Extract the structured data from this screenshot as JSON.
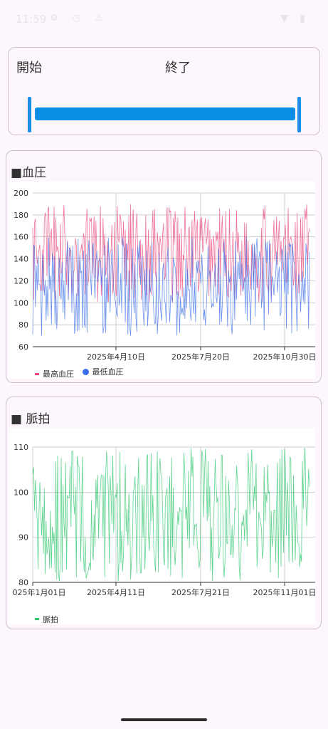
{
  "status_bar": {
    "time": "11:59",
    "left_icons": "⚙ ◷ ⚠",
    "right_icons": "▼ ▮"
  },
  "range": {
    "start_label": "開始",
    "end_label": "終了"
  },
  "bp_card": {
    "title": "■血圧",
    "legend": [
      {
        "label": "最高血圧",
        "color": "#e8477a",
        "shape": "line"
      },
      {
        "label": "最低血圧",
        "color": "#3a6ee8",
        "shape": "dot"
      }
    ]
  },
  "pulse_card": {
    "title": "■ 脈拍",
    "legend": [
      {
        "label": "脈拍",
        "color": "#2cc46a",
        "shape": "line"
      }
    ]
  },
  "chart_data": [
    {
      "type": "line",
      "title": "■血圧",
      "ylim": [
        60,
        200
      ],
      "y_ticks": [
        60,
        80,
        100,
        120,
        140,
        160,
        180,
        200
      ],
      "x_tick_labels": [
        "2025年4月10日",
        "2025年7月20日",
        "2025年10月30日"
      ],
      "x_range": [
        "2025-01-01",
        "2025-11-10"
      ],
      "grid": true,
      "legend_position": "bottom-left",
      "series": [
        {
          "name": "最高血圧",
          "color": "#e8477a",
          "approx_range": [
            100,
            190
          ]
        },
        {
          "name": "最低血圧",
          "color": "#3a6ee8",
          "approx_range": [
            70,
            160
          ]
        }
      ]
    },
    {
      "type": "line",
      "title": "■ 脈拍",
      "ylim": [
        80,
        110
      ],
      "y_ticks": [
        80,
        90,
        100,
        110
      ],
      "x_tick_labels": [
        "025年1月01日",
        "2025年4月11日",
        "2025年7月21日",
        "2025年11月01日"
      ],
      "x_range": [
        "2025-01-01",
        "2025-11-10"
      ],
      "grid": true,
      "legend_position": "bottom-left",
      "series": [
        {
          "name": "脈拍",
          "color": "#2cc46a",
          "approx_range": [
            80,
            110
          ]
        }
      ]
    }
  ]
}
